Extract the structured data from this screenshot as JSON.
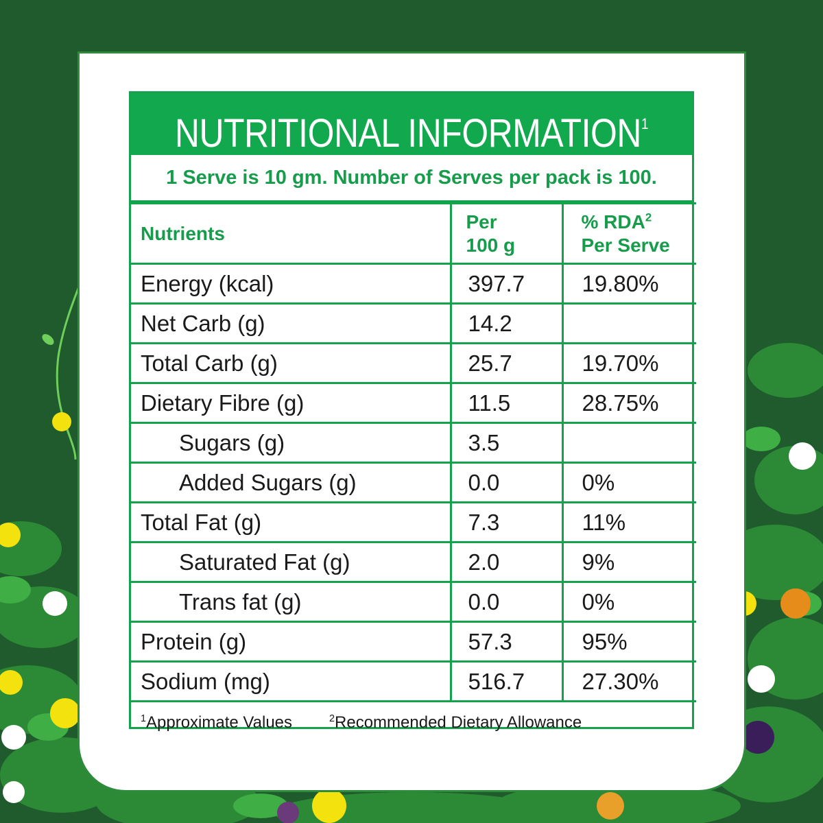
{
  "title": "NUTRITIONAL INFORMATION",
  "title_sup": "1",
  "serve_info": "1 Serve is 10 gm. Number of Serves per pack is 100.",
  "headers": {
    "nutrients": "Nutrients",
    "per_line1": "Per",
    "per_line2": "100 g",
    "rda_line1": "% RDA",
    "rda_sup": "2",
    "rda_line2": "Per Serve"
  },
  "rows": [
    {
      "name": "Energy (kcal)",
      "per100": "397.7",
      "rda": "19.80%",
      "indent": false
    },
    {
      "name": "Net Carb (g)",
      "per100": "14.2",
      "rda": "",
      "indent": false
    },
    {
      "name": "Total Carb (g)",
      "per100": "25.7",
      "rda": "19.70%",
      "indent": false
    },
    {
      "name": "Dietary Fibre (g)",
      "per100": "11.5",
      "rda": "28.75%",
      "indent": false
    },
    {
      "name": "Sugars (g)",
      "per100": "3.5",
      "rda": "",
      "indent": true
    },
    {
      "name": "Added Sugars (g)",
      "per100": "0.0",
      "rda": "0%",
      "indent": true
    },
    {
      "name": "Total Fat (g)",
      "per100": "7.3",
      "rda": "11%",
      "indent": false
    },
    {
      "name": "Saturated Fat (g)",
      "per100": "2.0",
      "rda": "9%",
      "indent": true
    },
    {
      "name": "Trans fat (g)",
      "per100": "0.0",
      "rda": "0%",
      "indent": true
    },
    {
      "name": "Protein (g)",
      "per100": "57.3",
      "rda": "95%",
      "indent": false
    },
    {
      "name": "Sodium (mg)",
      "per100": "516.7",
      "rda": "27.30%",
      "indent": false
    }
  ],
  "footnotes": {
    "fn1_sup": "1",
    "fn1_text": "Approximate Values",
    "fn2_sup": "2",
    "fn2_text": "Recommended Dietary Allowance"
  },
  "colors": {
    "background": "#1f5b2c",
    "accent_green": "#12a84e",
    "text_green": "#169c4a"
  }
}
